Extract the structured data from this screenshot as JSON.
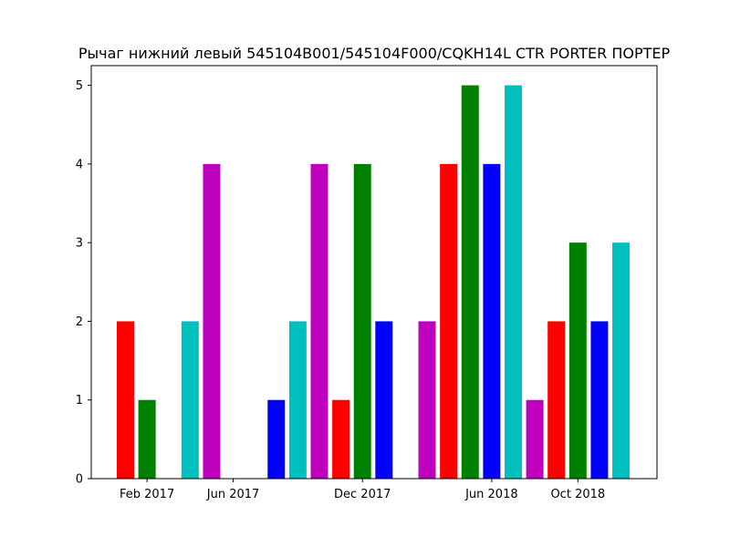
{
  "chart_data": {
    "type": "bar",
    "title": "Рычаг нижний левый 545104B001/545104F000/CQKH14L CTR PORTER ПОРТЕР",
    "xlabel": "",
    "ylabel": "",
    "ylim": [
      0,
      5.25
    ],
    "yticks": [
      0,
      1,
      2,
      3,
      4,
      5
    ],
    "x_ticks": [
      {
        "label": "Feb 2017",
        "date": "2017-02"
      },
      {
        "label": "Jun 2017",
        "date": "2017-06"
      },
      {
        "label": "Dec 2017",
        "date": "2017-12"
      },
      {
        "label": "Jun 2018",
        "date": "2018-06"
      },
      {
        "label": "Oct 2018",
        "date": "2018-10"
      }
    ],
    "bars": [
      {
        "date": "2017-01",
        "value": 2,
        "color": "#ff0000"
      },
      {
        "date": "2017-02",
        "value": 1,
        "color": "#008000"
      },
      {
        "date": "2017-03",
        "value": 0,
        "color": "#0000ff"
      },
      {
        "date": "2017-04",
        "value": 2,
        "color": "#00bfbf"
      },
      {
        "date": "2017-05",
        "value": 4,
        "color": "#bf00bf"
      },
      {
        "date": "2017-06",
        "value": 0,
        "color": "#ff0000"
      },
      {
        "date": "2017-07",
        "value": 0,
        "color": "#008000"
      },
      {
        "date": "2017-08",
        "value": 1,
        "color": "#0000ff"
      },
      {
        "date": "2017-09",
        "value": 2,
        "color": "#00bfbf"
      },
      {
        "date": "2017-10",
        "value": 4,
        "color": "#bf00bf"
      },
      {
        "date": "2017-11",
        "value": 1,
        "color": "#ff0000"
      },
      {
        "date": "2017-12",
        "value": 4,
        "color": "#008000"
      },
      {
        "date": "2018-01",
        "value": 2,
        "color": "#0000ff"
      },
      {
        "date": "2018-02",
        "value": 0,
        "color": "#00bfbf"
      },
      {
        "date": "2018-03",
        "value": 2,
        "color": "#bf00bf"
      },
      {
        "date": "2018-04",
        "value": 4,
        "color": "#ff0000"
      },
      {
        "date": "2018-05",
        "value": 5,
        "color": "#008000"
      },
      {
        "date": "2018-06",
        "value": 4,
        "color": "#0000ff"
      },
      {
        "date": "2018-07",
        "value": 5,
        "color": "#00bfbf"
      },
      {
        "date": "2018-08",
        "value": 1,
        "color": "#bf00bf"
      },
      {
        "date": "2018-09",
        "value": 2,
        "color": "#ff0000"
      },
      {
        "date": "2018-10",
        "value": 3,
        "color": "#008000"
      },
      {
        "date": "2018-11",
        "value": 2,
        "color": "#0000ff"
      },
      {
        "date": "2018-12",
        "value": 3,
        "color": "#00bfbf"
      }
    ]
  }
}
